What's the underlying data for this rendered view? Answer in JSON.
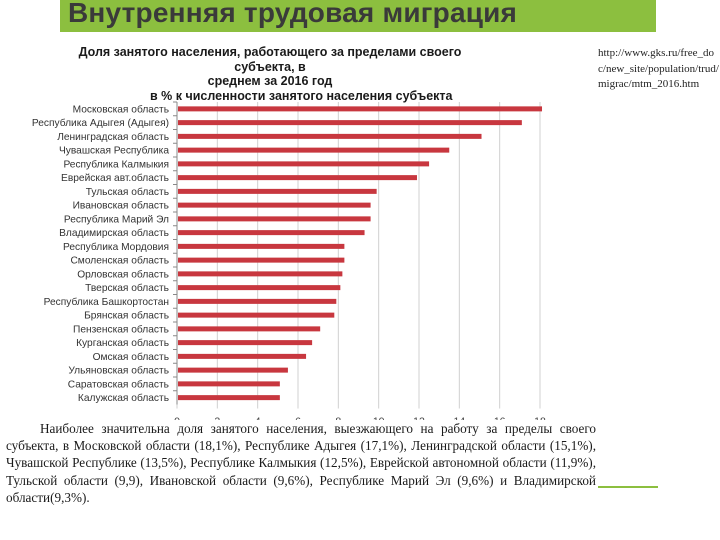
{
  "slide": {
    "title": "Внутренняя трудовая миграция",
    "source": "http://www.gks.ru/free_doc/new_site/population/trud/migrac/mtm_2016.htm",
    "body": "Наиболее значительна доля занятого населения, выезжающего на работу за пределы своего субъекта, в Московской области (18,1%), Республике Адыгея (17,1%), Ленинградской области (15,1%), Чувашской Республике (13,5%), Республике Калмыкия (12,5%), Еврейской автономной области (11,9%), Тульской области (9,9), Ивановской области (9,6%), Республике Марий Эл (9,6%) и Владимирской области(9,3%)."
  },
  "colors": {
    "accent": "#8cbf3f",
    "bar": "#c8373f",
    "grid": "#d0d0d0"
  },
  "chart_data": {
    "type": "bar",
    "orientation": "horizontal",
    "title_lines": [
      "Доля занятого населения, работающего за пределами своего субъекта, в",
      "среднем за 2016 год",
      "в % к численности занятого населения субъекта"
    ],
    "categories": [
      "Московская область",
      "Республика Адыгея (Адыгея)",
      "Ленинградская область",
      "Чувашская Республика",
      "Республика Калмыкия",
      "Еврейская авт.область",
      "Тульская область",
      "Ивановская область",
      "Республика Марий Эл",
      "Владимирская область",
      "Республика Мордовия",
      "Смоленская область",
      "Орловская область",
      "Тверская область",
      "Республика Башкортостан",
      "Брянская область",
      "Пензенская область",
      "Курганская область",
      "Омская область",
      "Ульяновская область",
      "Саратовская область",
      "Калужская область"
    ],
    "values": [
      18.1,
      17.1,
      15.1,
      13.5,
      12.5,
      11.9,
      9.9,
      9.6,
      9.6,
      9.3,
      8.3,
      8.3,
      8.2,
      8.1,
      7.9,
      7.8,
      7.1,
      6.7,
      6.4,
      5.5,
      5.1,
      5.1
    ],
    "xlim": [
      0,
      18
    ],
    "xticks": [
      "0",
      "2",
      "4",
      "6",
      "8",
      "10",
      "12",
      "14",
      "16",
      "18"
    ],
    "grid": true
  }
}
